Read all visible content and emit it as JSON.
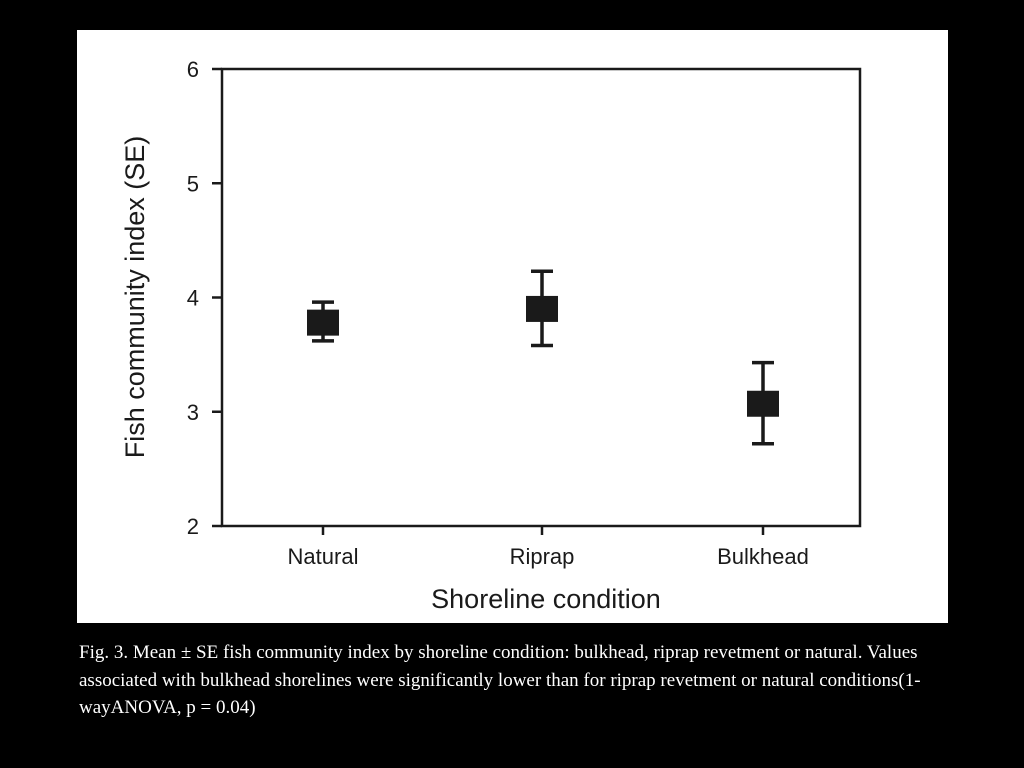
{
  "chart_data": {
    "type": "scatter",
    "title": "",
    "xlabel": "Shoreline condition",
    "ylabel": "Fish community index (SE)",
    "categories": [
      "Natural",
      "Riprap",
      "Bulkhead"
    ],
    "series": [
      {
        "values": [
          3.78,
          3.9,
          3.07
        ],
        "se_lower": [
          3.62,
          3.58,
          2.72
        ],
        "se_upper": [
          3.96,
          4.23,
          3.43
        ]
      }
    ],
    "ylim": [
      2,
      6
    ],
    "yticks": [
      "2",
      "3",
      "4",
      "5",
      "6"
    ],
    "grid": false,
    "legend": "none",
    "marker_color": "#1a1a1a"
  },
  "caption": "Fig. 3. Mean ± SE fish community index by shoreline condition: bulkhead, riprap revetment or natural. Values associated with bulkhead shorelines were significantly lower than for riprap revetment or natural conditions(1-wayANOVA, p = 0.04)"
}
